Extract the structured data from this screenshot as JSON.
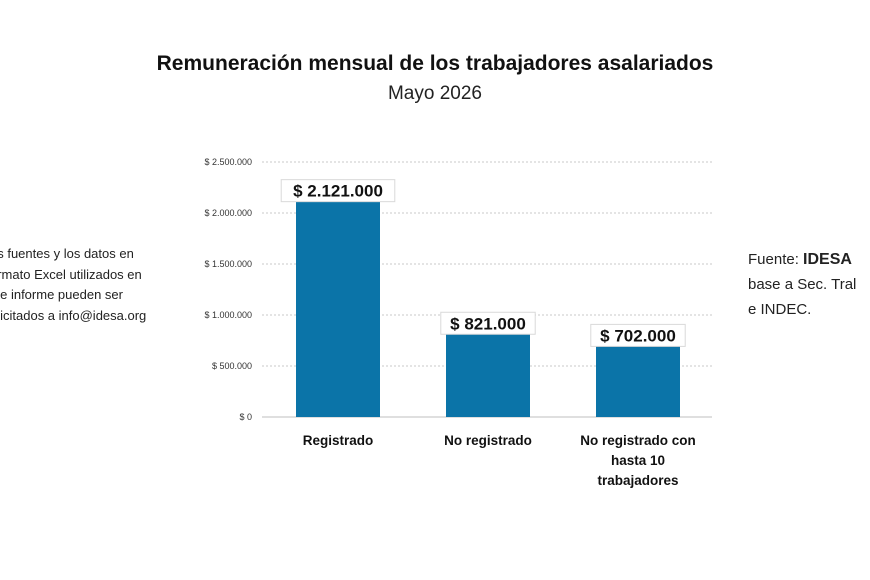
{
  "chart_data": {
    "type": "bar",
    "title": "Remuneración mensual de los trabajadores asalariados",
    "subtitle": "Mayo 2026",
    "categories": [
      [
        "Registrado"
      ],
      [
        "No registrado"
      ],
      [
        "No registrado con",
        "hasta 10",
        "trabajadores"
      ]
    ],
    "values": [
      2121000,
      821000,
      702000
    ],
    "data_labels": [
      "$ 2.121.000",
      "$ 821.000",
      "$ 702.000"
    ],
    "yticks": [
      "$ 0",
      "$ 500.000",
      "$ 1.000.000",
      "$ 1.500.000",
      "$ 2.000.000",
      "$ 2.500.000"
    ],
    "ylim": [
      0,
      2500000
    ],
    "grid": true,
    "bar_color": "#0b74a8",
    "xlabel": "",
    "ylabel": ""
  },
  "notes": {
    "left": "as fuentes y los datos en\normato Excel utilizados en\nste informe pueden ser\nolicitados a info@idesa.org",
    "right_prefix": "Fuente: ",
    "right_bold": "IDESA",
    "right_line2": "base a Sec. Tral",
    "right_line3": "e INDEC."
  }
}
